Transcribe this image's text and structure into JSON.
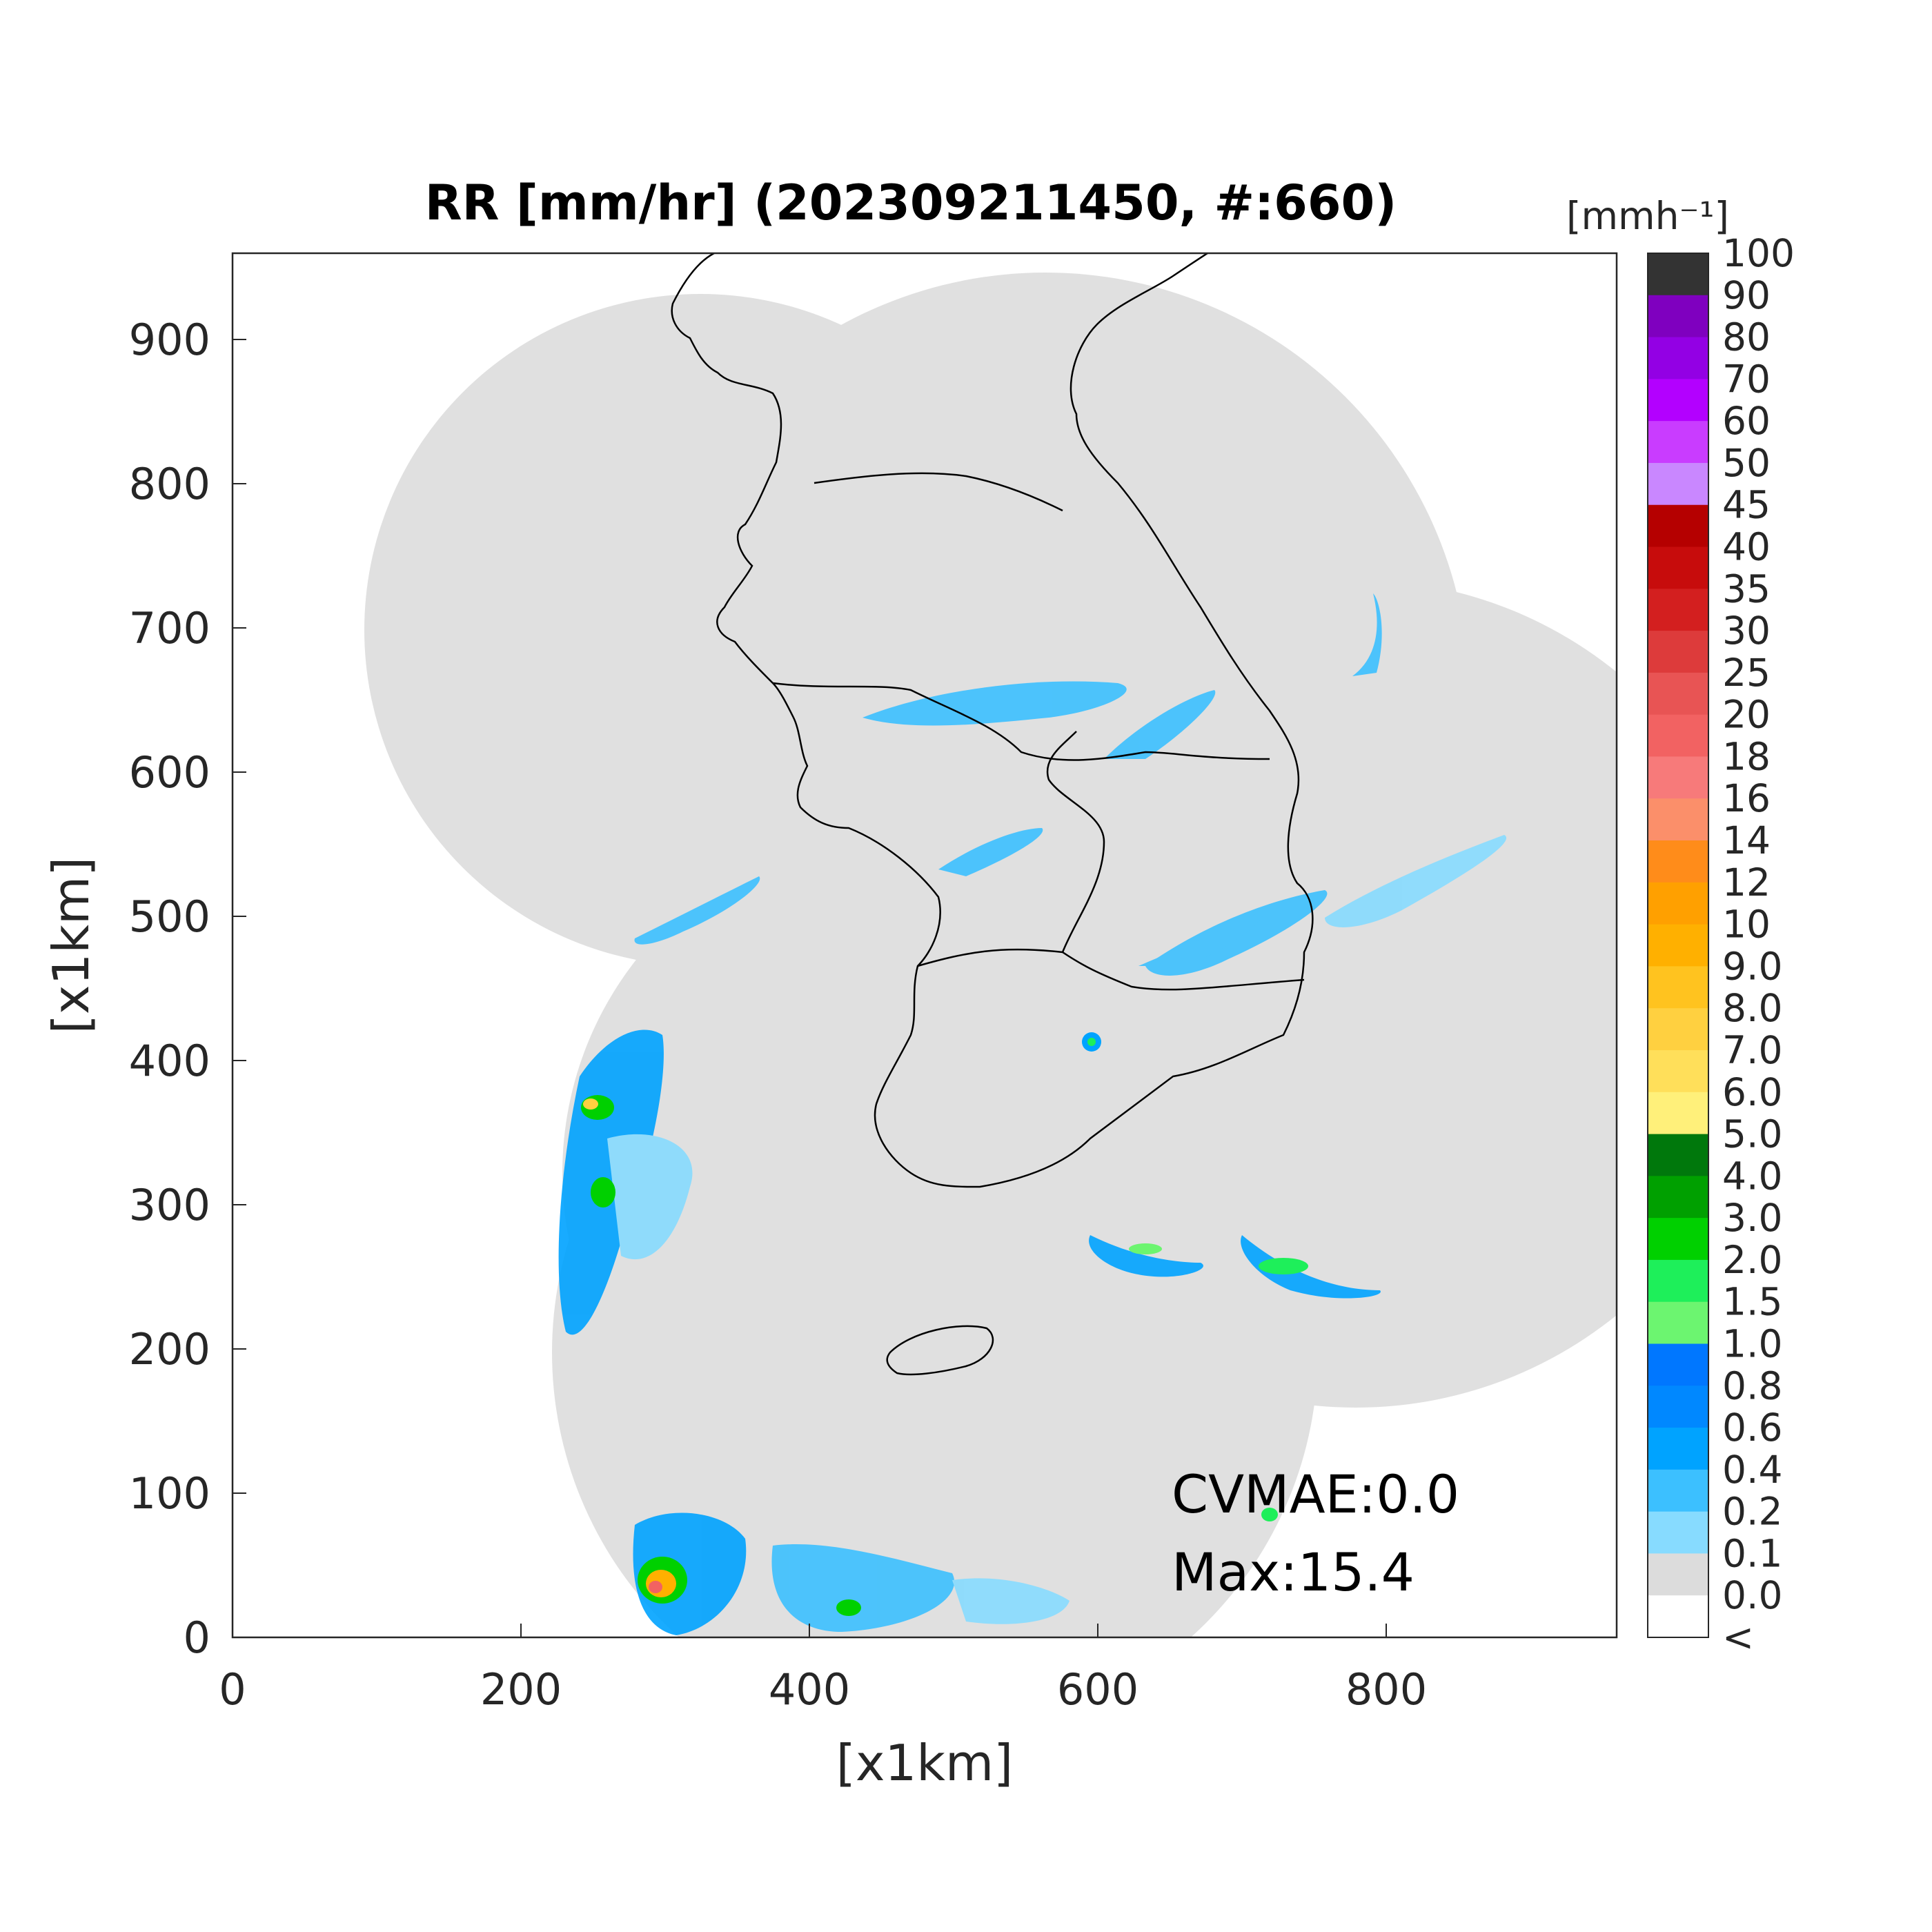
{
  "title": "RR [mm/hr] (202309211450, #:660)",
  "xlabel": "[x1km]",
  "ylabel": "[x1km]",
  "x_ticks": [
    "0",
    "200",
    "400",
    "600",
    "800"
  ],
  "y_ticks": [
    "0",
    "100",
    "200",
    "300",
    "400",
    "500",
    "600",
    "700",
    "800",
    "900"
  ],
  "colorbar": {
    "unit_label": "[mmh⁻¹]",
    "levels": [
      "100",
      "90",
      "80",
      "70",
      "60",
      "50",
      "45",
      "40",
      "35",
      "30",
      "25",
      "20",
      "18",
      "16",
      "14",
      "12",
      "10",
      "9.0",
      "8.0",
      "7.0",
      "6.0",
      "5.0",
      "4.0",
      "3.0",
      "2.0",
      "1.5",
      "1.0",
      "0.8",
      "0.6",
      "0.4",
      "0.2",
      "0.1",
      "0.0",
      "<"
    ],
    "colors_top_to_bottom": [
      "#333333",
      "#7f00bf",
      "#9300e4",
      "#b300ff",
      "#c93cff",
      "#c987ff",
      "#b50000",
      "#c70c0c",
      "#d31f1f",
      "#dd3b3b",
      "#e85454",
      "#f26262",
      "#f77a7a",
      "#fb8f6a",
      "#ff8c1a",
      "#ffa000",
      "#ffb000",
      "#ffc31f",
      "#ffd040",
      "#ffdf5a",
      "#fff07a",
      "#00780c",
      "#00a000",
      "#00d000",
      "#1eef5a",
      "#6cf570",
      "#0077ff",
      "#0088ff",
      "#00a3ff",
      "#3cc0ff",
      "#87dbff",
      "#dcdcdc",
      "#ffffff"
    ]
  },
  "annotations": {
    "cvmae": "CVMAE:0.0",
    "max": "Max:15.4"
  },
  "map": {
    "background_color": "#e0e0e0",
    "coastline_color": "#000000",
    "x_range_km": [
      0,
      960
    ],
    "y_range_km": [
      0,
      960
    ]
  }
}
